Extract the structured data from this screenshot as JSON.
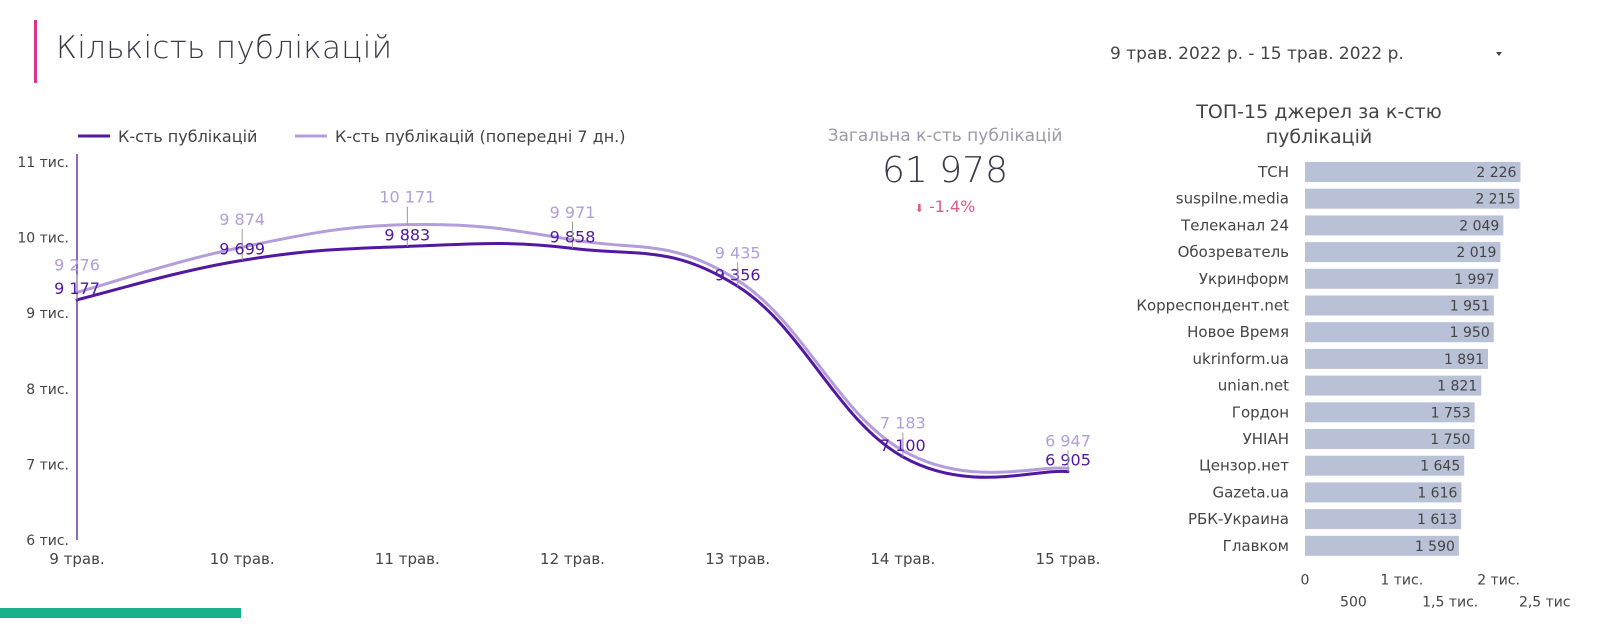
{
  "header": {
    "title": "Кількість публікацій",
    "date_range": "9 трав. 2022 р. - 15 трав. 2022 р."
  },
  "summary": {
    "label": "Загальна к-сть публікацій",
    "value": "61 978",
    "change": "-1.4%",
    "change_color": "#e05a8a"
  },
  "colors": {
    "accent": "#e0338e",
    "current_series": "#5218a0",
    "previous_series": "#b39ddb",
    "bar": "#b9c1d6",
    "bottom_accent": "#17b08a"
  },
  "chart_data": [
    {
      "type": "line",
      "categories": [
        "9 трав.",
        "10 трав.",
        "11 трав.",
        "12 трав.",
        "13 трав.",
        "14 трав.",
        "15 трав."
      ],
      "series": [
        {
          "name": "К-сть публікацій",
          "values": [
            9177,
            9699,
            9883,
            9858,
            9356,
            7100,
            6905
          ],
          "labels": [
            "9 177",
            "9 699",
            "9 883",
            "9 858",
            "9 356",
            "7 100",
            "6 905"
          ],
          "color": "#5218a0"
        },
        {
          "name": "К-сть публікацій (попередні 7 дн.)",
          "values": [
            9276,
            9874,
            10171,
            9971,
            9435,
            7183,
            6947
          ],
          "labels": [
            "9 276",
            "9 874",
            "10 171",
            "9 971",
            "9 435",
            "7 183",
            "6 947"
          ],
          "color": "#b39ddb"
        }
      ],
      "ylim": [
        6000,
        11000
      ],
      "yticks": [
        6000,
        7000,
        8000,
        9000,
        10000,
        11000
      ],
      "ytick_labels": [
        "6 тис.",
        "7 тис.",
        "8 тис.",
        "9 тис.",
        "10 тис.",
        "11 тис."
      ],
      "legend_position": "top-left",
      "grid": false
    },
    {
      "type": "bar",
      "orientation": "horizontal",
      "title": "ТОП-15 джерел за к-стю публікацій",
      "categories": [
        "ТСН",
        "suspilne.media",
        "Телеканал 24",
        "Обозреватель",
        "Укринформ",
        "Корреспондент.net",
        "Новое Время",
        "ukrinform.ua",
        "unian.net",
        "Гордон",
        "УНІАН",
        "Цензор.нет",
        "Gazeta.ua",
        "РБК-Украина",
        "Главком"
      ],
      "values": [
        2226,
        2215,
        2049,
        2019,
        1997,
        1951,
        1950,
        1891,
        1821,
        1753,
        1750,
        1645,
        1616,
        1613,
        1590
      ],
      "value_labels": [
        "2 226",
        "2 215",
        "2 049",
        "2 019",
        "1 997",
        "1 951",
        "1 950",
        "1 891",
        "1 821",
        "1 753",
        "1 750",
        "1 645",
        "1 616",
        "1 613",
        "1 590"
      ],
      "xlim": [
        0,
        2500
      ],
      "xticks": [
        0,
        500,
        1000,
        1500,
        2000,
        2500
      ],
      "xtick_labels": [
        "0",
        "500",
        "1 тис.",
        "1,5 тис.",
        "2 тис.",
        "2,5 тис."
      ],
      "grid": false
    }
  ]
}
